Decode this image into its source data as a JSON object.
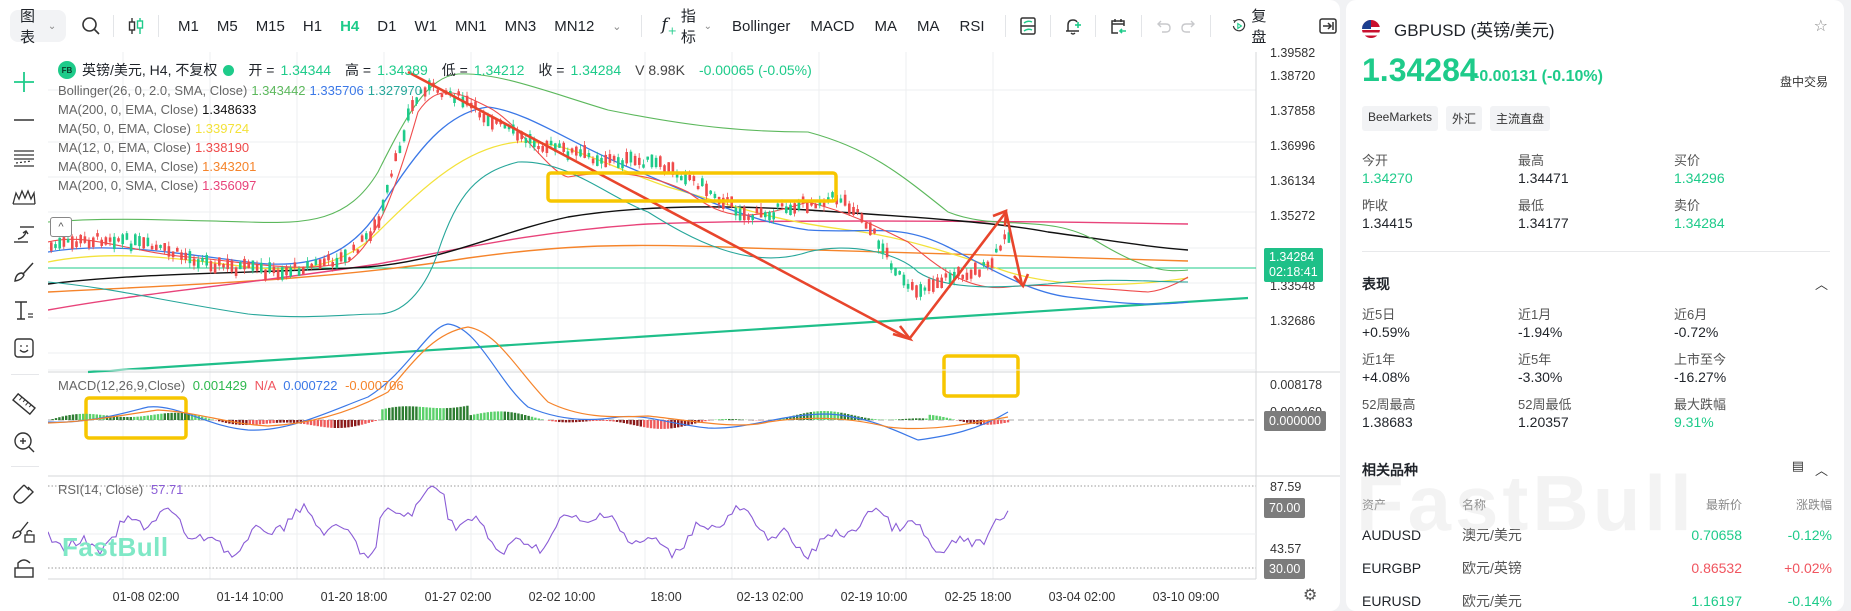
{
  "toolbar": {
    "chart_menu_label": "图表",
    "timeframes": [
      "M1",
      "M5",
      "M15",
      "H1",
      "H4",
      "D1",
      "W1",
      "MN1",
      "MN3",
      "MN12"
    ],
    "active_timeframe": "H4",
    "indicator_menu_label": "指标",
    "indicator_shortcuts": [
      "Bollinger",
      "MACD",
      "MA",
      "MA",
      "RSI"
    ],
    "replay_label": "复盘",
    "icons": [
      "search-icon",
      "candlestick-type-icon",
      "layout-icon",
      "alert-add-icon",
      "calendar-icon",
      "undo-icon",
      "redo-icon",
      "replay-icon",
      "collapse-panel-icon"
    ]
  },
  "left_tools": [
    "crosshair-icon",
    "horizontal-line-icon",
    "fib-lines-icon",
    "pattern-icon",
    "trend-arrow-icon",
    "brush-icon",
    "text-icon",
    "emoji-icon",
    "ruler-icon",
    "zoom-in-icon",
    "magnet-icon",
    "lock-drawing-icon",
    "lock-icon"
  ],
  "chart": {
    "symbol_badge": "FB",
    "title": "英镑/美元, H4, 不复权",
    "ohlc": {
      "open_label": "开 =",
      "open": "1.34344",
      "high_label": "高 =",
      "high": "1.34389",
      "low_label": "低 =",
      "low": "1.34212",
      "close_label": "收 =",
      "close": "1.34284",
      "volume": "V 8.98K",
      "change": "-0.00065 (-0.05%)"
    },
    "indicators": [
      {
        "label": "Bollinger(26, 0, 2.0, SMA, Close)",
        "values": [
          "1.343442",
          "1.335706",
          "1.327970"
        ],
        "colors": [
          "#5cb85c",
          "#3b78e7",
          "#26a69a"
        ]
      },
      {
        "label": "MA(200, 0, EMA, Close)",
        "values": [
          "1.348633"
        ],
        "colors": [
          "#111111"
        ]
      },
      {
        "label": "MA(50, 0, EMA, Close)",
        "values": [
          "1.339724"
        ],
        "colors": [
          "#f3e23b"
        ]
      },
      {
        "label": "MA(12, 0, EMA, Close)",
        "values": [
          "1.338190"
        ],
        "colors": [
          "#ef4b4b"
        ]
      },
      {
        "label": "MA(800, 0, EMA, Close)",
        "values": [
          "1.343201"
        ],
        "colors": [
          "#f5842b"
        ]
      },
      {
        "label": "MA(200, 0, SMA, Close)",
        "values": [
          "1.356097"
        ],
        "colors": [
          "#e8437a"
        ]
      }
    ],
    "price_axis": [
      "1.39582",
      "1.38720",
      "1.37858",
      "1.36996",
      "1.36134",
      "1.35272",
      "1.33548",
      "1.32686"
    ],
    "current_price_tag": {
      "price": "1.34284",
      "countdown": "02:18:41"
    },
    "macd": {
      "label": "MACD(12,26,9,Close)",
      "values": [
        {
          "v": "0.001429",
          "color": "#2db84d"
        },
        {
          "v": "N/A",
          "color": "#f0555f"
        },
        {
          "v": "0.000722",
          "color": "#3b78e7"
        },
        {
          "v": "-0.000706",
          "color": "#f5842b"
        }
      ],
      "axis": [
        "0.008178",
        "0.003469"
      ],
      "zero_tag": "0.000000"
    },
    "rsi": {
      "label": "RSI(14, Close)",
      "value": "57.71",
      "axis": [
        "87.59",
        "43.57"
      ],
      "upper_tag": "70.00",
      "lower_tag": "30.00"
    },
    "time_axis": [
      "01-08 02:00",
      "01-14 10:00",
      "01-20 18:00",
      "01-27 02:00",
      "02-02 10:00",
      "18:00",
      "02-13 02:00",
      "02-19 10:00",
      "02-25 18:00",
      "03-04 02:00",
      "03-10 09:00"
    ],
    "watermark": "FastBull",
    "colors": {
      "up": "#1ecb8a",
      "down": "#ef4b4b",
      "drawing_red": "#e8452c",
      "highlight_box": "#f7c600"
    }
  },
  "right_panel": {
    "symbol": "GBPUSD (英镑/美元)",
    "price": "1.34284",
    "change": "-0.00131  (-0.10%)",
    "status": "盘中交易",
    "tags": [
      "BeeMarkets",
      "外汇",
      "主流直盘"
    ],
    "quote": [
      {
        "label": "今开",
        "value": "1.34270",
        "green": true
      },
      {
        "label": "最高",
        "value": "1.34471",
        "green": false
      },
      {
        "label": "买价",
        "value": "1.34296",
        "green": true
      },
      {
        "label": "昨收",
        "value": "1.34415",
        "green": false
      },
      {
        "label": "最低",
        "value": "1.34177",
        "green": false
      },
      {
        "label": "卖价",
        "value": "1.34284",
        "green": true
      }
    ],
    "performance_title": "表现",
    "performance": [
      {
        "label": "近5日",
        "value": "+0.59%",
        "green": false
      },
      {
        "label": "近1月",
        "value": "-1.94%",
        "green": false
      },
      {
        "label": "近6月",
        "value": "-0.72%",
        "green": false
      },
      {
        "label": "近1年",
        "value": "+4.08%",
        "green": false
      },
      {
        "label": "近5年",
        "value": "-3.30%",
        "green": false
      },
      {
        "label": "上市至今",
        "value": "-16.27%",
        "green": false
      },
      {
        "label": "52周最高",
        "value": "1.38683",
        "green": false
      },
      {
        "label": "52周最低",
        "value": "1.20357",
        "green": false
      },
      {
        "label": "最大跌幅",
        "value": "9.31%",
        "green": true
      }
    ],
    "related_title": "相关品种",
    "related_headers": [
      "资产",
      "名称",
      "最新价",
      "涨跌幅"
    ],
    "related": [
      {
        "asset": "AUDUSD",
        "name": "澳元/美元",
        "price": "0.70658",
        "change": "-0.12%",
        "price_color": "green",
        "change_color": "green"
      },
      {
        "asset": "EURGBP",
        "name": "欧元/英镑",
        "price": "0.86532",
        "change": "+0.02%",
        "price_color": "red",
        "change_color": "red"
      },
      {
        "asset": "EURUSD",
        "name": "欧元/美元",
        "price": "1.16197",
        "change": "-0.14%",
        "price_color": "green",
        "change_color": "green"
      }
    ],
    "watermark": "FastBull"
  }
}
